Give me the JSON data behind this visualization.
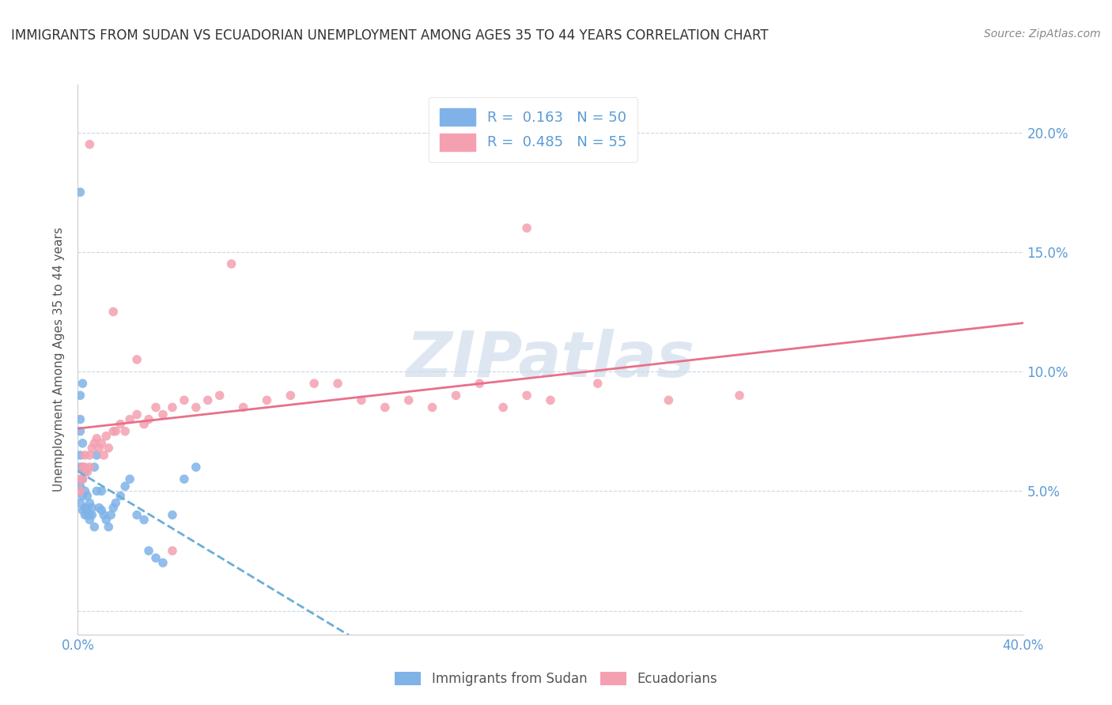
{
  "title": "IMMIGRANTS FROM SUDAN VS ECUADORIAN UNEMPLOYMENT AMONG AGES 35 TO 44 YEARS CORRELATION CHART",
  "source": "Source: ZipAtlas.com",
  "ylabel": "Unemployment Among Ages 35 to 44 years",
  "xlim": [
    0.0,
    0.4
  ],
  "ylim": [
    -0.01,
    0.22
  ],
  "yticks": [
    0.0,
    0.05,
    0.1,
    0.15,
    0.2
  ],
  "ytick_labels": [
    "",
    "5.0%",
    "10.0%",
    "15.0%",
    "20.0%"
  ],
  "xticks": [
    0.0,
    0.1,
    0.2,
    0.3,
    0.4
  ],
  "xtick_labels": [
    "0.0%",
    "",
    "",
    "",
    "40.0%"
  ],
  "series1_label": "Immigrants from Sudan",
  "series1_color": "#7fb3e8",
  "series1_R": 0.163,
  "series1_N": 50,
  "series2_label": "Ecuadorians",
  "series2_color": "#f4a0b0",
  "series2_R": 0.485,
  "series2_N": 55,
  "line1_color": "#6baed6",
  "line2_color": "#e8708a",
  "background_color": "#ffffff",
  "grid_color": "#c8d8e8",
  "title_color": "#333333",
  "axis_color": "#5b9bd5",
  "watermark": "ZIPatlas",
  "watermark_color": "#c8d8e8",
  "sudan_x": [
    0.001,
    0.001,
    0.001,
    0.001,
    0.001,
    0.001,
    0.001,
    0.001,
    0.002,
    0.002,
    0.002,
    0.002,
    0.002,
    0.002,
    0.003,
    0.003,
    0.003,
    0.003,
    0.004,
    0.004,
    0.004,
    0.005,
    0.005,
    0.005,
    0.006,
    0.006,
    0.007,
    0.007,
    0.008,
    0.008,
    0.009,
    0.01,
    0.01,
    0.011,
    0.012,
    0.013,
    0.014,
    0.015,
    0.016,
    0.018,
    0.02,
    0.022,
    0.025,
    0.028,
    0.03,
    0.033,
    0.036,
    0.04,
    0.045,
    0.05
  ],
  "sudan_y": [
    0.045,
    0.052,
    0.06,
    0.065,
    0.075,
    0.08,
    0.09,
    0.175,
    0.042,
    0.048,
    0.055,
    0.06,
    0.07,
    0.095,
    0.04,
    0.043,
    0.05,
    0.058,
    0.04,
    0.043,
    0.048,
    0.038,
    0.04,
    0.045,
    0.04,
    0.043,
    0.035,
    0.06,
    0.05,
    0.065,
    0.043,
    0.042,
    0.05,
    0.04,
    0.038,
    0.035,
    0.04,
    0.043,
    0.045,
    0.048,
    0.052,
    0.055,
    0.04,
    0.038,
    0.025,
    0.022,
    0.02,
    0.04,
    0.055,
    0.06
  ],
  "ecuador_x": [
    0.001,
    0.001,
    0.002,
    0.002,
    0.003,
    0.003,
    0.004,
    0.005,
    0.005,
    0.006,
    0.007,
    0.008,
    0.009,
    0.01,
    0.011,
    0.012,
    0.013,
    0.015,
    0.016,
    0.018,
    0.02,
    0.022,
    0.025,
    0.028,
    0.03,
    0.033,
    0.036,
    0.04,
    0.045,
    0.05,
    0.055,
    0.06,
    0.065,
    0.07,
    0.08,
    0.09,
    0.1,
    0.11,
    0.12,
    0.13,
    0.14,
    0.15,
    0.16,
    0.17,
    0.18,
    0.19,
    0.2,
    0.22,
    0.25,
    0.28,
    0.005,
    0.015,
    0.025,
    0.04,
    0.19
  ],
  "ecuador_y": [
    0.05,
    0.055,
    0.055,
    0.06,
    0.06,
    0.065,
    0.058,
    0.06,
    0.065,
    0.068,
    0.07,
    0.072,
    0.068,
    0.07,
    0.065,
    0.073,
    0.068,
    0.075,
    0.075,
    0.078,
    0.075,
    0.08,
    0.082,
    0.078,
    0.08,
    0.085,
    0.082,
    0.085,
    0.088,
    0.085,
    0.088,
    0.09,
    0.145,
    0.085,
    0.088,
    0.09,
    0.095,
    0.095,
    0.088,
    0.085,
    0.088,
    0.085,
    0.09,
    0.095,
    0.085,
    0.09,
    0.088,
    0.095,
    0.088,
    0.09,
    0.195,
    0.125,
    0.105,
    0.025,
    0.16
  ]
}
